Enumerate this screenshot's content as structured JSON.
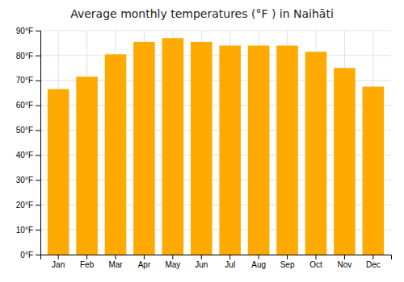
{
  "chart_data": {
    "type": "bar",
    "title": "Average monthly temperatures (°F ) in Naihāti",
    "categories": [
      "Jan",
      "Feb",
      "Mar",
      "Apr",
      "May",
      "Jun",
      "Jul",
      "Aug",
      "Sep",
      "Oct",
      "Nov",
      "Dec"
    ],
    "values": [
      66.5,
      71.5,
      80.5,
      85.5,
      87.0,
      85.5,
      84.0,
      84.0,
      84.0,
      81.5,
      75.0,
      67.5
    ],
    "color": "#FFAA00",
    "ylim": [
      0,
      90
    ],
    "yticks": [
      {
        "value": 0,
        "label": "0°F"
      },
      {
        "value": 10,
        "label": "10°F"
      },
      {
        "value": 20,
        "label": "20°F"
      },
      {
        "value": 30,
        "label": "30°F"
      },
      {
        "value": 40,
        "label": "40°F"
      },
      {
        "value": 50,
        "label": "50°F"
      },
      {
        "value": 60,
        "label": "60°F"
      },
      {
        "value": 70,
        "label": "70°F"
      },
      {
        "value": 80,
        "label": "80°F"
      },
      {
        "value": 90,
        "label": "90°F"
      }
    ],
    "grid": true
  }
}
